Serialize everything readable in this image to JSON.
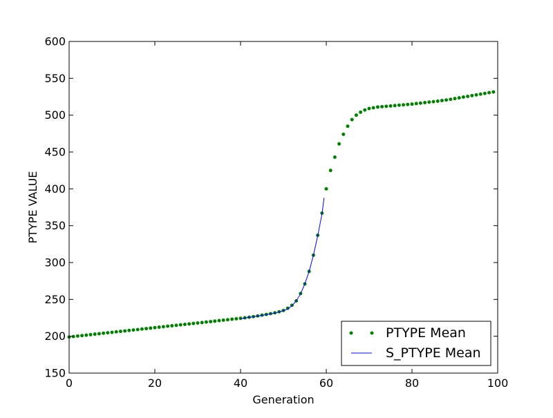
{
  "chart_data": {
    "type": "line",
    "title": "",
    "xlabel": "Generation",
    "ylabel": "PTYPE VALUE",
    "xlim": [
      0,
      100
    ],
    "ylim": [
      150,
      600
    ],
    "xticks": [
      0,
      20,
      40,
      60,
      80,
      100
    ],
    "yticks": [
      150,
      200,
      250,
      300,
      350,
      400,
      450,
      500,
      550,
      600
    ],
    "grid": false,
    "legend": {
      "placement": "bottom-right"
    },
    "series": [
      {
        "name": "PTYPE Mean",
        "style": "dots",
        "color": "#008000",
        "x": [
          0,
          1,
          2,
          3,
          4,
          5,
          6,
          7,
          8,
          9,
          10,
          11,
          12,
          13,
          14,
          15,
          16,
          17,
          18,
          19,
          20,
          21,
          22,
          23,
          24,
          25,
          26,
          27,
          28,
          29,
          30,
          31,
          32,
          33,
          34,
          35,
          36,
          37,
          38,
          39,
          40,
          41,
          42,
          43,
          44,
          45,
          46,
          47,
          48,
          49,
          50,
          51,
          52,
          53,
          54,
          55,
          56,
          57,
          58,
          59,
          60,
          61,
          62,
          63,
          64,
          65,
          66,
          67,
          68,
          69,
          70,
          71,
          72,
          73,
          74,
          75,
          76,
          77,
          78,
          79,
          80,
          81,
          82,
          83,
          84,
          85,
          86,
          87,
          88,
          89,
          90,
          91,
          92,
          93,
          94,
          95,
          96,
          97,
          98,
          99
        ],
        "y": [
          199,
          199.6,
          200.3,
          200.9,
          201.5,
          202.2,
          202.8,
          203.4,
          204.1,
          204.7,
          205.3,
          206,
          206.6,
          207.2,
          207.9,
          208.5,
          209.1,
          209.8,
          210.4,
          211,
          211.7,
          212.3,
          212.9,
          213.6,
          214.2,
          214.8,
          215.5,
          216.1,
          216.7,
          217.4,
          218,
          218.6,
          219.3,
          219.9,
          220.5,
          221.2,
          221.8,
          222.4,
          223.1,
          223.7,
          224.3,
          225,
          225.8,
          226.6,
          227.6,
          228.6,
          229.6,
          230.6,
          231.8,
          233.2,
          235,
          238,
          242,
          248,
          258,
          271,
          288,
          310,
          337,
          367,
          400,
          425,
          443,
          461,
          474,
          485,
          494,
          500,
          504,
          507,
          509,
          510,
          511,
          511.5,
          512,
          512.5,
          513,
          513.5,
          514,
          514.5,
          515,
          515.7,
          516.3,
          517,
          517.7,
          518.3,
          519,
          519.8,
          520.6,
          521.5,
          522.5,
          523.5,
          524.5,
          525.5,
          526.5,
          527.5,
          528.5,
          529.5,
          530.5,
          531.5
        ]
      },
      {
        "name": "S_PTYPE Mean",
        "style": "line",
        "color": "#0000ff",
        "x": [
          40,
          41,
          42,
          43,
          44,
          45,
          46,
          47,
          48,
          49,
          50,
          51,
          52,
          53,
          54,
          55,
          56,
          57,
          58,
          59,
          59.5
        ],
        "y": [
          224,
          224.8,
          225.6,
          226.4,
          227.3,
          228.3,
          229.3,
          230.4,
          231.6,
          232.9,
          234.6,
          237,
          241.5,
          248,
          257.5,
          271,
          288,
          310,
          336,
          366,
          388
        ]
      }
    ]
  }
}
